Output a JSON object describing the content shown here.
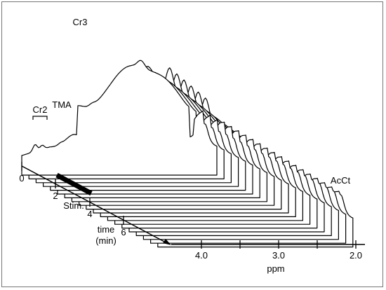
{
  "peak_labels": {
    "cr2": "Cr2",
    "tma": "TMA",
    "cr3": "Cr3",
    "acct": "AcCt"
  },
  "ppm_axis": {
    "ticks": [
      "4.0",
      "3.0",
      "2.0"
    ],
    "label": "ppm"
  },
  "time_axis": {
    "ticks": [
      "0",
      "2",
      "4",
      "6"
    ],
    "label_line1": "time",
    "label_line2": "(min)"
  },
  "stimulus": {
    "label": "Stim.",
    "start_min": 2,
    "end_min": 4
  },
  "chart_data": {
    "type": "waterfall",
    "x_axis": {
      "label": "ppm",
      "ticks": [
        4.0,
        3.0,
        2.0
      ],
      "reversed": true,
      "range": [
        4.5,
        1.9
      ]
    },
    "time_axis": {
      "label": "time (min)",
      "ticks": [
        0,
        2,
        4,
        6
      ]
    },
    "stimulus_interval_min": [
      2,
      4
    ],
    "peaks": [
      {
        "label": "Cr2",
        "ppm": 4.48
      },
      {
        "label": "TMA",
        "ppm": 4.1
      },
      {
        "label": "Cr3",
        "ppm": 3.92
      },
      {
        "label": "AcCt",
        "ppm": 2.2
      }
    ]
  },
  "colors": {
    "line": "#000000",
    "frame": "#777777",
    "background": "#ffffff"
  }
}
